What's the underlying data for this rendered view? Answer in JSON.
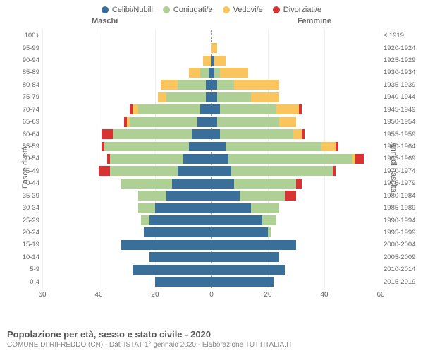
{
  "legend": {
    "items": [
      {
        "label": "Celibi/Nubili",
        "color": "#3a6f9a"
      },
      {
        "label": "Coniugati/e",
        "color": "#aed095"
      },
      {
        "label": "Vedovi/e",
        "color": "#f9c55c"
      },
      {
        "label": "Divorziati/e",
        "color": "#d93232"
      }
    ]
  },
  "headers": {
    "male": "Maschi",
    "female": "Femmine"
  },
  "axis_labels": {
    "left": "Fasce di età",
    "right": "Anni di nascita"
  },
  "xaxis": {
    "max": 60,
    "ticks": [
      60,
      40,
      20,
      0,
      20,
      40,
      60
    ]
  },
  "colors": {
    "single": "#3a6f9a",
    "married": "#aed095",
    "widowed": "#f9c55c",
    "divorced": "#d93232",
    "grid": "#eeeeee",
    "center": "#999999",
    "bg": "#ffffff"
  },
  "title": "Popolazione per età, sesso e stato civile - 2020",
  "subtitle": "COMUNE DI RIFREDDO (CN) - Dati ISTAT 1° gennaio 2020 - Elaborazione TUTTITALIA.IT",
  "rows": [
    {
      "age": "100+",
      "year": "≤ 1919",
      "m": {
        "s": 0,
        "c": 0,
        "w": 0,
        "d": 0
      },
      "f": {
        "s": 0,
        "c": 0,
        "w": 0,
        "d": 0
      }
    },
    {
      "age": "95-99",
      "year": "1920-1924",
      "m": {
        "s": 0,
        "c": 0,
        "w": 0,
        "d": 0
      },
      "f": {
        "s": 0,
        "c": 0,
        "w": 2,
        "d": 0
      }
    },
    {
      "age": "90-94",
      "year": "1925-1929",
      "m": {
        "s": 0,
        "c": 0,
        "w": 3,
        "d": 0
      },
      "f": {
        "s": 1,
        "c": 0,
        "w": 4,
        "d": 0
      }
    },
    {
      "age": "85-89",
      "year": "1930-1934",
      "m": {
        "s": 1,
        "c": 3,
        "w": 4,
        "d": 0
      },
      "f": {
        "s": 1,
        "c": 2,
        "w": 10,
        "d": 0
      }
    },
    {
      "age": "80-84",
      "year": "1935-1939",
      "m": {
        "s": 2,
        "c": 10,
        "w": 6,
        "d": 0
      },
      "f": {
        "s": 2,
        "c": 6,
        "w": 16,
        "d": 0
      }
    },
    {
      "age": "75-79",
      "year": "1940-1944",
      "m": {
        "s": 2,
        "c": 14,
        "w": 3,
        "d": 0
      },
      "f": {
        "s": 2,
        "c": 12,
        "w": 10,
        "d": 0
      }
    },
    {
      "age": "70-74",
      "year": "1945-1949",
      "m": {
        "s": 4,
        "c": 22,
        "w": 2,
        "d": 1
      },
      "f": {
        "s": 3,
        "c": 20,
        "w": 8,
        "d": 1
      }
    },
    {
      "age": "65-69",
      "year": "1950-1954",
      "m": {
        "s": 5,
        "c": 24,
        "w": 1,
        "d": 1
      },
      "f": {
        "s": 2,
        "c": 22,
        "w": 6,
        "d": 0
      }
    },
    {
      "age": "60-64",
      "year": "1955-1959",
      "m": {
        "s": 7,
        "c": 28,
        "w": 0,
        "d": 4
      },
      "f": {
        "s": 3,
        "c": 26,
        "w": 3,
        "d": 1
      }
    },
    {
      "age": "55-59",
      "year": "1960-1964",
      "m": {
        "s": 8,
        "c": 30,
        "w": 0,
        "d": 1
      },
      "f": {
        "s": 5,
        "c": 34,
        "w": 5,
        "d": 1
      }
    },
    {
      "age": "50-54",
      "year": "1965-1969",
      "m": {
        "s": 10,
        "c": 26,
        "w": 0,
        "d": 1
      },
      "f": {
        "s": 6,
        "c": 44,
        "w": 1,
        "d": 3
      }
    },
    {
      "age": "45-49",
      "year": "1970-1974",
      "m": {
        "s": 12,
        "c": 24,
        "w": 0,
        "d": 4
      },
      "f": {
        "s": 7,
        "c": 36,
        "w": 0,
        "d": 1
      }
    },
    {
      "age": "40-44",
      "year": "1975-1979",
      "m": {
        "s": 14,
        "c": 18,
        "w": 0,
        "d": 0
      },
      "f": {
        "s": 8,
        "c": 22,
        "w": 0,
        "d": 2
      }
    },
    {
      "age": "35-39",
      "year": "1980-1984",
      "m": {
        "s": 16,
        "c": 10,
        "w": 0,
        "d": 0
      },
      "f": {
        "s": 10,
        "c": 16,
        "w": 0,
        "d": 4
      }
    },
    {
      "age": "30-34",
      "year": "1985-1989",
      "m": {
        "s": 20,
        "c": 6,
        "w": 0,
        "d": 0
      },
      "f": {
        "s": 14,
        "c": 10,
        "w": 0,
        "d": 0
      }
    },
    {
      "age": "25-29",
      "year": "1990-1994",
      "m": {
        "s": 22,
        "c": 3,
        "w": 0,
        "d": 0
      },
      "f": {
        "s": 18,
        "c": 5,
        "w": 0,
        "d": 0
      }
    },
    {
      "age": "20-24",
      "year": "1995-1999",
      "m": {
        "s": 24,
        "c": 0,
        "w": 0,
        "d": 0
      },
      "f": {
        "s": 20,
        "c": 1,
        "w": 0,
        "d": 0
      }
    },
    {
      "age": "15-19",
      "year": "2000-2004",
      "m": {
        "s": 32,
        "c": 0,
        "w": 0,
        "d": 0
      },
      "f": {
        "s": 30,
        "c": 0,
        "w": 0,
        "d": 0
      }
    },
    {
      "age": "10-14",
      "year": "2005-2009",
      "m": {
        "s": 22,
        "c": 0,
        "w": 0,
        "d": 0
      },
      "f": {
        "s": 24,
        "c": 0,
        "w": 0,
        "d": 0
      }
    },
    {
      "age": "5-9",
      "year": "2010-2014",
      "m": {
        "s": 28,
        "c": 0,
        "w": 0,
        "d": 0
      },
      "f": {
        "s": 26,
        "c": 0,
        "w": 0,
        "d": 0
      }
    },
    {
      "age": "0-4",
      "year": "2015-2019",
      "m": {
        "s": 20,
        "c": 0,
        "w": 0,
        "d": 0
      },
      "f": {
        "s": 22,
        "c": 0,
        "w": 0,
        "d": 0
      }
    }
  ]
}
